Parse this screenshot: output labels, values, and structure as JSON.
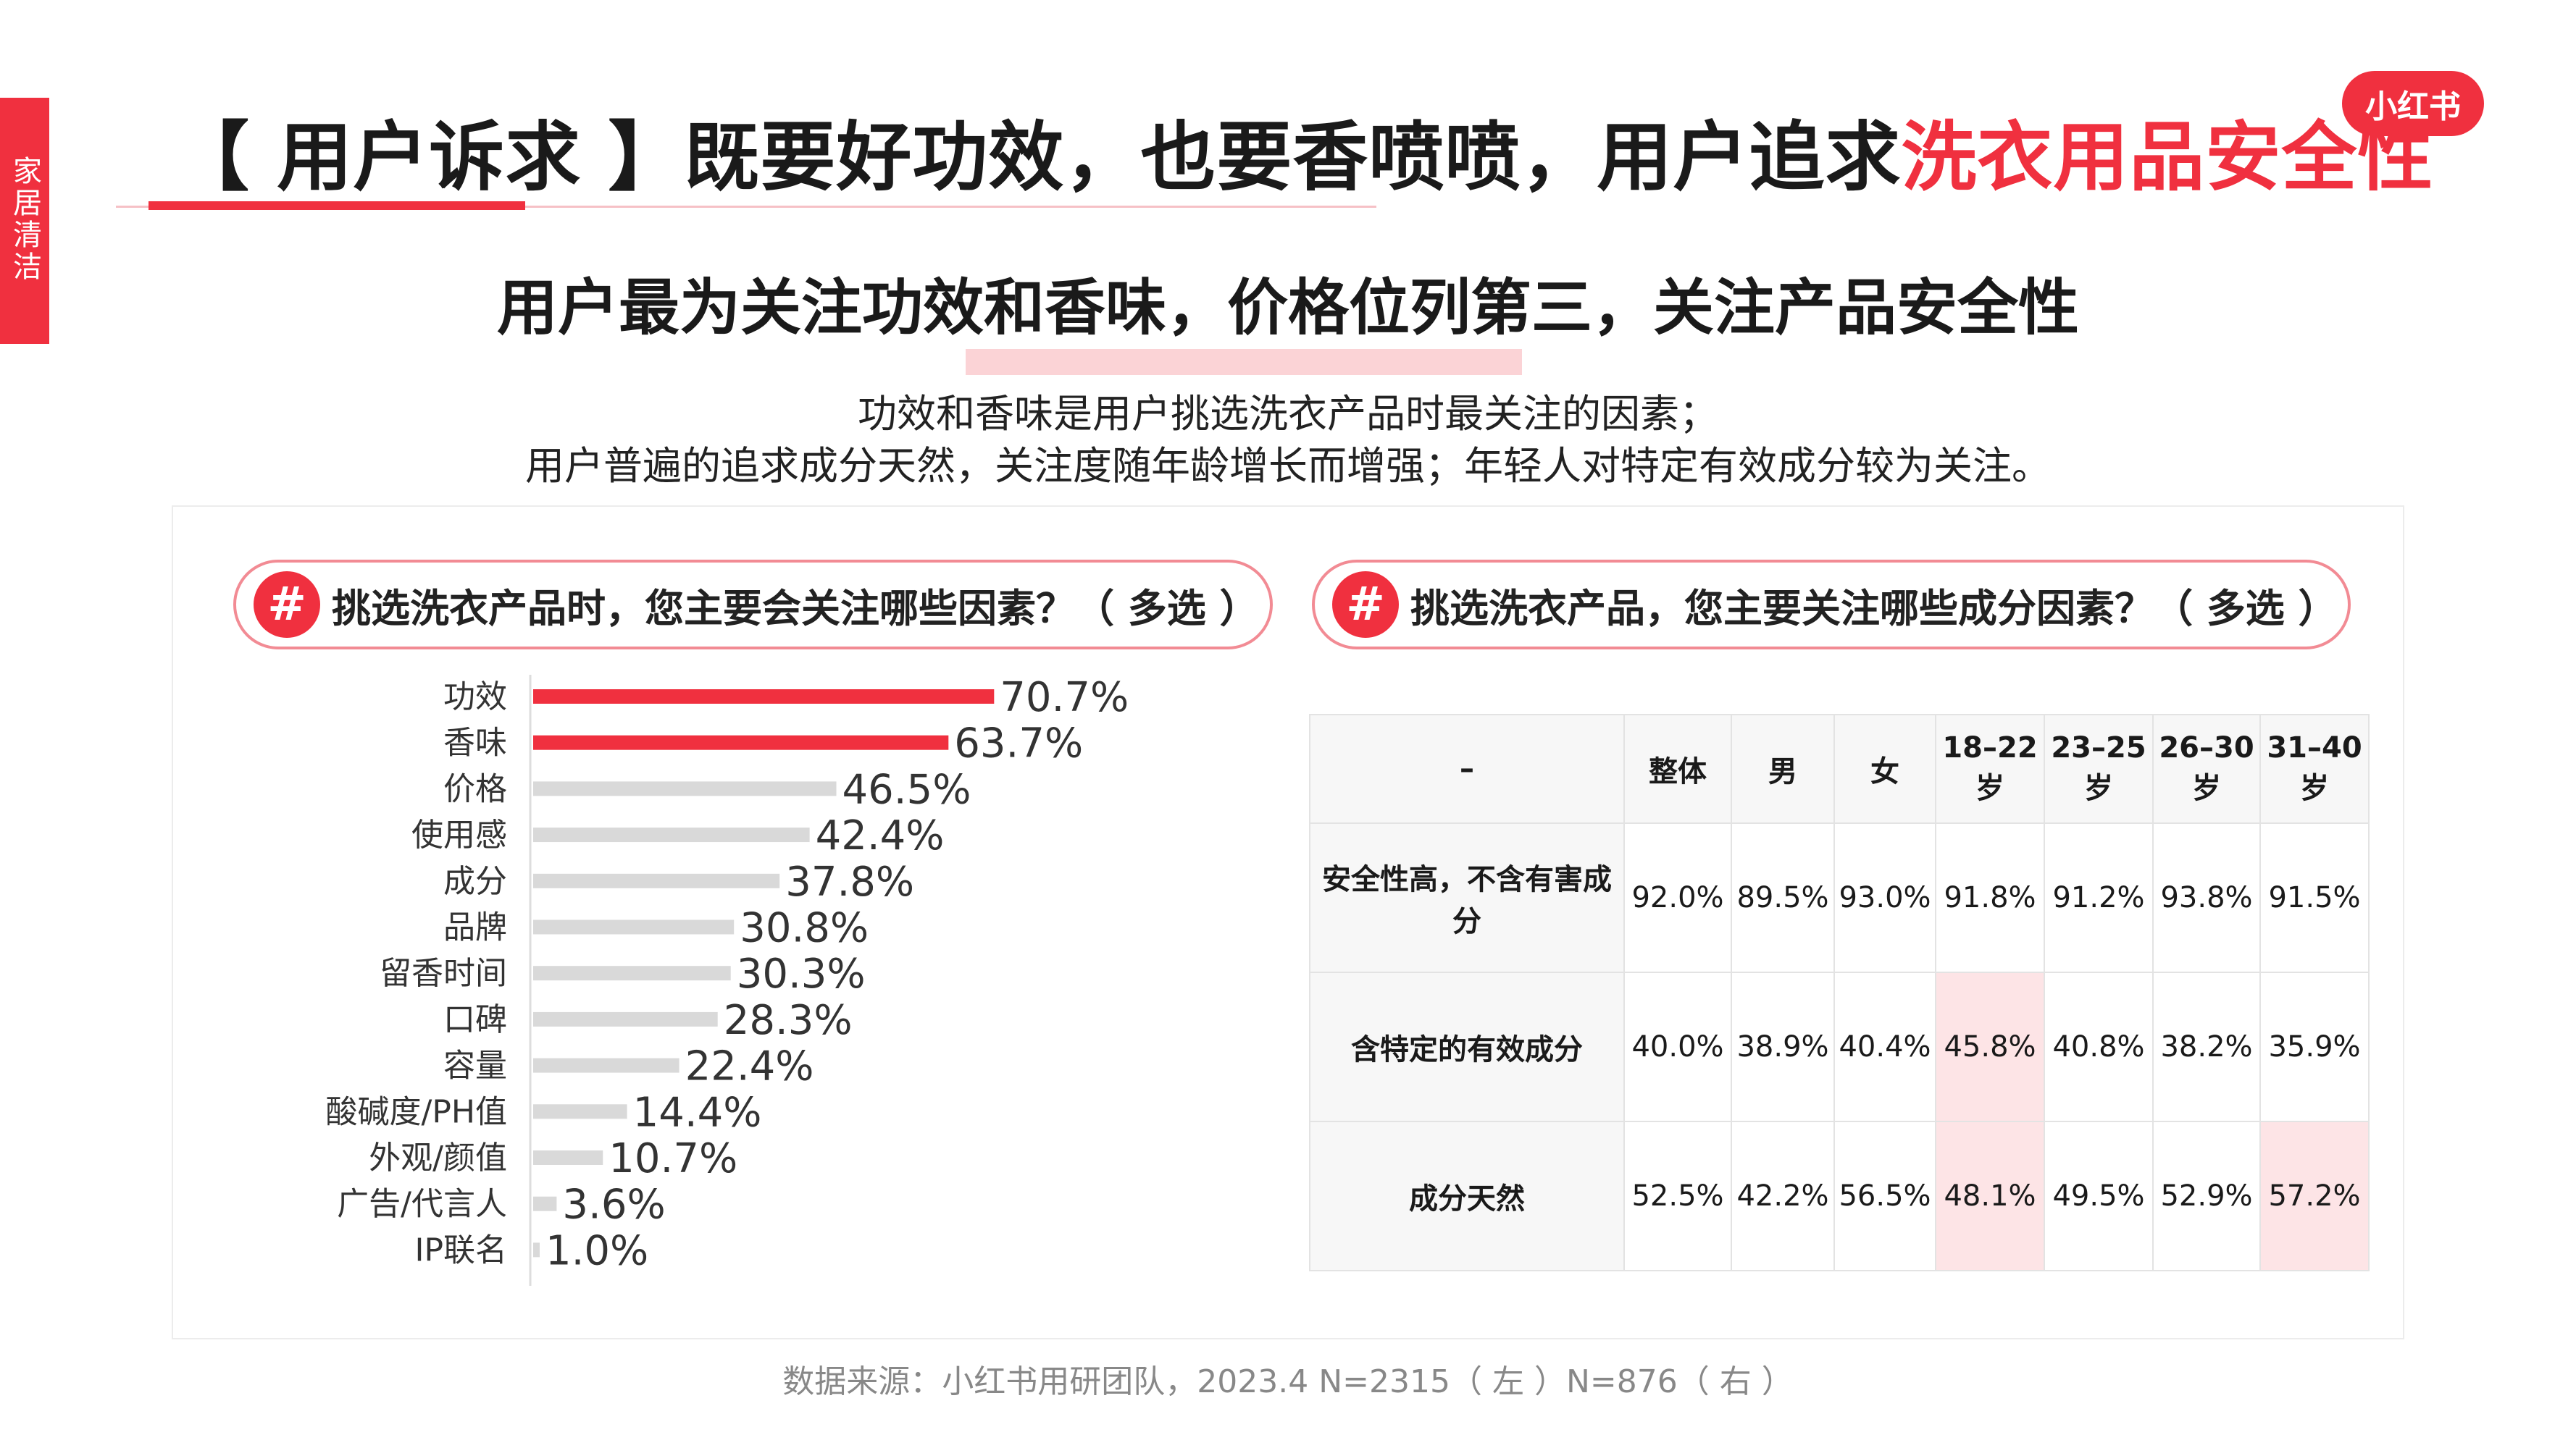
{
  "side_tag": "家居清洁",
  "logo": "小红书",
  "title": {
    "prefix": "【 用户诉求 】既要好功效，也要香喷喷，用户追求",
    "highlight": "洗衣用品安全性"
  },
  "subtitle": "用户最为关注功效和香味，价格位列第三，关注产品安全性",
  "description": [
    "功效和香味是用户挑选洗衣产品时最关注的因素；",
    "用户普遍的追求成分天然，关注度随年龄增长而增强；年轻人对特定有效成分较为关注。"
  ],
  "left_question": "挑选洗衣产品时，您主要会关注哪些因素？（ 多选 ）",
  "right_question": "挑选洗衣产品，您主要关注哪些成分因素？（ 多选 ）",
  "hash_symbol": "#",
  "colors": {
    "accent": "#f0303f",
    "bar_grey": "#d9d9d9",
    "highlight_cell": "#fde4e6"
  },
  "chart_data": [
    {
      "type": "bar",
      "orientation": "horizontal",
      "categories": [
        "功效",
        "香味",
        "价格",
        "使用感",
        "成分",
        "品牌",
        "留香时间",
        "口碑",
        "容量",
        "酸碱度/PH值",
        "外观/颜值",
        "广告/代言人",
        "IP联名"
      ],
      "values": [
        70.7,
        63.7,
        46.5,
        42.4,
        37.8,
        30.8,
        30.3,
        28.3,
        22.4,
        14.4,
        10.7,
        3.6,
        1.0
      ],
      "value_labels": [
        "70.7%",
        "63.7%",
        "46.5%",
        "42.4%",
        "37.8%",
        "30.8%",
        "30.3%",
        "28.3%",
        "22.4%",
        "14.4%",
        "10.7%",
        "3.6%",
        "1.0%"
      ],
      "highlighted_indices": [
        0,
        1
      ],
      "xlim": [
        0,
        100
      ],
      "title": "",
      "xlabel": "",
      "ylabel": ""
    },
    {
      "type": "table",
      "columns": [
        "–",
        "整体",
        "男",
        "女",
        "18–22岁",
        "23–25岁",
        "26–30岁",
        "31–40岁"
      ],
      "rows": [
        {
          "label": "安全性高，不含有害成分",
          "values": [
            "92.0%",
            "89.5%",
            "93.0%",
            "91.8%",
            "91.2%",
            "93.8%",
            "91.5%"
          ],
          "highlight": []
        },
        {
          "label": "含特定的有效成分",
          "values": [
            "40.0%",
            "38.9%",
            "40.4%",
            "45.8%",
            "40.8%",
            "38.2%",
            "35.9%"
          ],
          "highlight": [
            3
          ]
        },
        {
          "label": "成分天然",
          "values": [
            "52.5%",
            "42.2%",
            "56.5%",
            "48.1%",
            "49.5%",
            "52.9%",
            "57.2%"
          ],
          "highlight": [
            3,
            6
          ]
        }
      ]
    }
  ],
  "source": "数据来源：小红书用研团队，2023.4 N=2315（ 左 ）N=876（ 右 ）"
}
